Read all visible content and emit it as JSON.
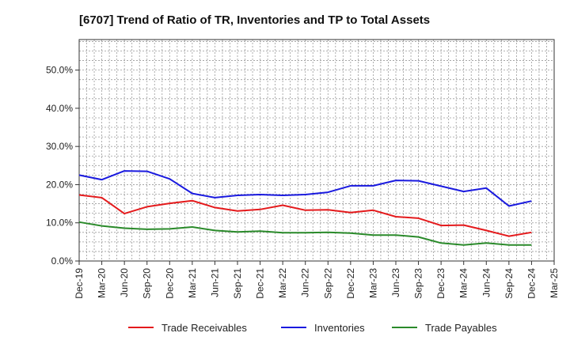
{
  "chart_data": {
    "type": "line",
    "title": "[6707]  Trend of Ratio of TR, Inventories and TP to Total Assets",
    "xlabel": "",
    "ylabel": "",
    "ylim": [
      0,
      0.58
    ],
    "y_ticks": [
      0,
      0.1,
      0.2,
      0.3,
      0.4,
      0.5
    ],
    "y_tick_labels": [
      "0.0%",
      "10.0%",
      "20.0%",
      "30.0%",
      "40.0%",
      "50.0%"
    ],
    "x_tick_labels": [
      "Dec-19",
      "Mar-20",
      "Jun-20",
      "Sep-20",
      "Dec-20",
      "Mar-21",
      "Jun-21",
      "Sep-21",
      "Dec-21",
      "Mar-22",
      "Jun-22",
      "Sep-22",
      "Dec-22",
      "Mar-23",
      "Jun-23",
      "Sep-23",
      "Dec-23",
      "Mar-24",
      "Jun-24",
      "Sep-24",
      "Dec-24",
      "Mar-25"
    ],
    "x": [
      "Dec-19",
      "Mar-20",
      "Jun-20",
      "Sep-20",
      "Dec-20",
      "Mar-21",
      "Jun-21",
      "Sep-21",
      "Dec-21",
      "Mar-22",
      "Jun-22",
      "Sep-22",
      "Dec-22",
      "Mar-23",
      "Jun-23",
      "Sep-23",
      "Dec-23",
      "Mar-24",
      "Jun-24",
      "Sep-24",
      "Dec-24"
    ],
    "grid": true,
    "legend_position": "bottom",
    "series": [
      {
        "name": "Trade Receivables",
        "color": "#e41a1c",
        "values": [
          0.173,
          0.166,
          0.124,
          0.142,
          0.151,
          0.158,
          0.14,
          0.131,
          0.135,
          0.146,
          0.133,
          0.134,
          0.127,
          0.133,
          0.116,
          0.112,
          0.093,
          0.094,
          0.08,
          0.065,
          0.075
        ]
      },
      {
        "name": "Inventories",
        "color": "#1a1adf",
        "values": [
          0.225,
          0.213,
          0.236,
          0.235,
          0.215,
          0.177,
          0.166,
          0.172,
          0.174,
          0.172,
          0.174,
          0.18,
          0.197,
          0.197,
          0.211,
          0.21,
          0.196,
          0.182,
          0.191,
          0.144,
          0.157
        ]
      },
      {
        "name": "Trade Payables",
        "color": "#2a8a2a",
        "values": [
          0.102,
          0.092,
          0.086,
          0.083,
          0.084,
          0.089,
          0.08,
          0.076,
          0.078,
          0.074,
          0.074,
          0.075,
          0.073,
          0.068,
          0.068,
          0.063,
          0.047,
          0.042,
          0.047,
          0.042,
          0.042
        ]
      }
    ]
  }
}
